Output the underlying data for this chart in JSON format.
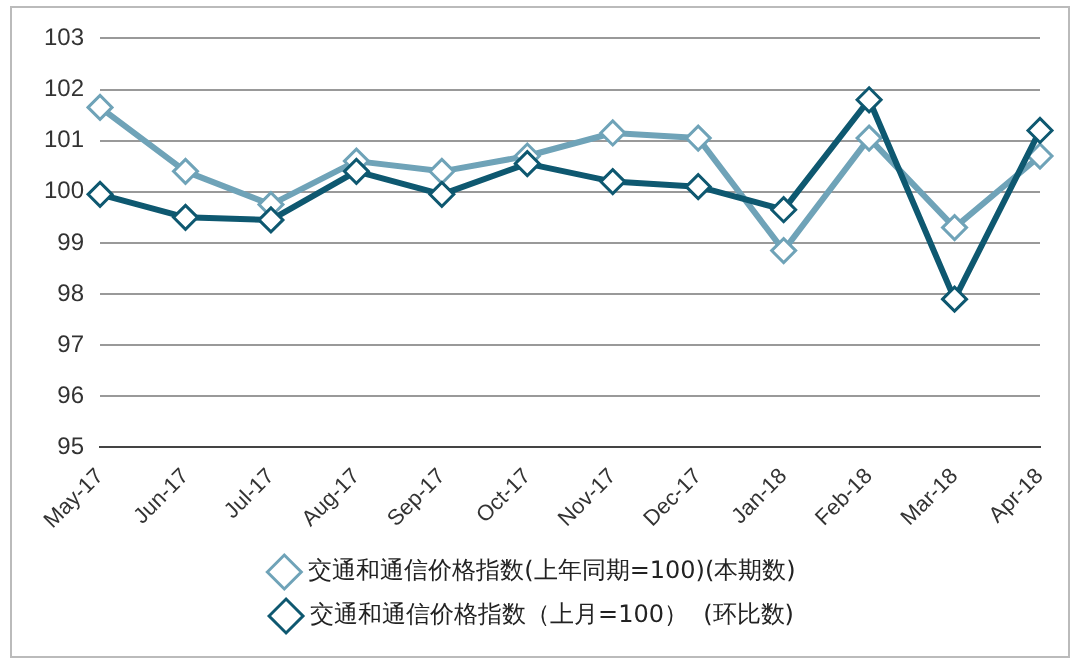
{
  "chart_data": {
    "type": "line",
    "categories": [
      "May-17",
      "Jun-17",
      "Jul-17",
      "Aug-17",
      "Sep-17",
      "Oct-17",
      "Nov-17",
      "Dec-17",
      "Jan-18",
      "Feb-18",
      "Mar-18",
      "Apr-18"
    ],
    "series": [
      {
        "name": "交通和通信价格指数(上年同期=100)(本期数)",
        "color": "#6fa3b8",
        "values": [
          101.65,
          100.4,
          99.75,
          100.6,
          100.4,
          100.7,
          101.15,
          101.05,
          98.85,
          101.05,
          99.3,
          100.7
        ]
      },
      {
        "name": "交通和通信价格指数（上月=100）  (环比数)",
        "color": "#0e5870",
        "values": [
          99.95,
          99.5,
          99.45,
          100.4,
          99.95,
          100.55,
          100.2,
          100.1,
          99.65,
          101.8,
          97.9,
          101.2
        ]
      }
    ],
    "ylim": [
      95,
      103
    ],
    "yticks": [
      95,
      96,
      97,
      98,
      99,
      100,
      101,
      102,
      103
    ],
    "grid": "y",
    "legend": "bottom",
    "marker": "diamond",
    "line_style": "solid"
  }
}
